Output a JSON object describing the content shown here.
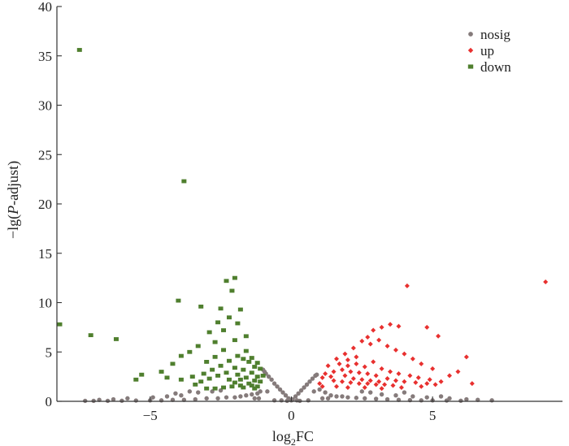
{
  "chart_data": {
    "type": "scatter",
    "title": "",
    "xlabel": "log₂FC",
    "xlabel_parts": {
      "base": "log",
      "sub": "2",
      "rest": "FC"
    },
    "ylabel": "−lg(P-adjust)",
    "ylabel_parts": {
      "pre": "−lg(",
      "italic": "P",
      "post": "-adjust)"
    },
    "xlim": [
      -8.3,
      9.6
    ],
    "ylim": [
      0,
      40
    ],
    "xticks": [
      -5,
      0,
      5
    ],
    "xtick_labels": [
      "−5",
      "0",
      "5"
    ],
    "yticks": [
      0,
      5,
      10,
      15,
      20,
      25,
      30,
      35,
      40
    ],
    "ytick_labels": [
      "0",
      "5",
      "10",
      "15",
      "20",
      "25",
      "30",
      "35",
      "40"
    ],
    "grid": false,
    "legend_position": "top-right",
    "series": [
      {
        "name": "nosig",
        "color": "#857b7b",
        "marker": "circle",
        "points": [
          [
            0.0,
            0.1
          ],
          [
            0.05,
            0.2
          ],
          [
            -0.1,
            0.3
          ],
          [
            0.15,
            0.5
          ],
          [
            -0.2,
            0.6
          ],
          [
            0.25,
            0.8
          ],
          [
            -0.3,
            0.9
          ],
          [
            0.35,
            1.1
          ],
          [
            -0.4,
            1.2
          ],
          [
            0.45,
            1.4
          ],
          [
            -0.5,
            1.5
          ],
          [
            0.55,
            1.7
          ],
          [
            -0.6,
            1.8
          ],
          [
            0.65,
            2.0
          ],
          [
            -0.7,
            2.2
          ],
          [
            0.75,
            2.3
          ],
          [
            -0.8,
            2.5
          ],
          [
            0.85,
            2.6
          ],
          [
            -0.9,
            2.8
          ],
          [
            0.9,
            2.7
          ],
          [
            -0.95,
            3.0
          ],
          [
            1.0,
            1.2
          ],
          [
            -1.0,
            3.2
          ],
          [
            -1.1,
            1.0
          ],
          [
            -1.2,
            0.8
          ],
          [
            1.2,
            0.9
          ],
          [
            -1.4,
            0.7
          ],
          [
            1.4,
            0.6
          ],
          [
            -1.6,
            0.6
          ],
          [
            1.6,
            0.5
          ],
          [
            -1.8,
            0.5
          ],
          [
            1.8,
            0.5
          ],
          [
            -2.0,
            0.4
          ],
          [
            2.0,
            0.4
          ],
          [
            -2.3,
            0.4
          ],
          [
            2.3,
            0.35
          ],
          [
            -2.6,
            0.3
          ],
          [
            2.6,
            0.3
          ],
          [
            -3.0,
            0.3
          ],
          [
            3.0,
            0.25
          ],
          [
            -3.4,
            0.2
          ],
          [
            3.4,
            0.2
          ],
          [
            -3.8,
            0.15
          ],
          [
            3.8,
            0.15
          ],
          [
            -4.2,
            0.15
          ],
          [
            4.2,
            0.12
          ],
          [
            -4.6,
            0.1
          ],
          [
            4.6,
            0.1
          ],
          [
            -5.0,
            0.1
          ],
          [
            5.0,
            0.1
          ],
          [
            -5.5,
            0.08
          ],
          [
            5.5,
            0.08
          ],
          [
            -6.0,
            0.06
          ],
          [
            6.0,
            0.06
          ],
          [
            -6.5,
            0.05
          ],
          [
            -7.0,
            0.05
          ],
          [
            -7.3,
            0.05
          ],
          [
            -4.9,
            0.4
          ],
          [
            -4.4,
            0.5
          ],
          [
            -3.9,
            0.6
          ],
          [
            -3.6,
            1.0
          ],
          [
            -3.3,
            0.9
          ],
          [
            3.2,
            0.7
          ],
          [
            3.7,
            0.6
          ],
          [
            4.3,
            0.5
          ],
          [
            4.8,
            0.4
          ],
          [
            5.6,
            0.3
          ],
          [
            6.2,
            0.2
          ],
          [
            6.6,
            0.15
          ],
          [
            7.1,
            0.1
          ],
          [
            -2.8,
            1.0
          ],
          [
            -2.5,
            1.1
          ],
          [
            2.5,
            1.0
          ],
          [
            2.8,
            0.9
          ],
          [
            -1.3,
            0.3
          ],
          [
            1.3,
            0.3
          ],
          [
            -0.6,
            0.1
          ],
          [
            0.6,
            0.1
          ],
          [
            -0.35,
            0.1
          ],
          [
            0.3,
            0.05
          ],
          [
            -5.8,
            0.3
          ],
          [
            -6.3,
            0.2
          ],
          [
            -6.8,
            0.15
          ],
          [
            5.3,
            0.5
          ],
          [
            4.0,
            0.9
          ],
          [
            -4.1,
            0.8
          ],
          [
            0.8,
            1.0
          ],
          [
            -0.85,
            1.0
          ],
          [
            1.1,
            0.3
          ],
          [
            -1.15,
            0.3
          ],
          [
            0.2,
            0.1
          ],
          [
            -0.15,
            0.05
          ]
        ]
      },
      {
        "name": "up",
        "color": "#e8302f",
        "marker": "diamond",
        "points": [
          [
            9.0,
            12.1
          ],
          [
            4.1,
            11.7
          ],
          [
            5.2,
            6.6
          ],
          [
            4.8,
            7.5
          ],
          [
            3.8,
            7.6
          ],
          [
            3.5,
            7.8
          ],
          [
            3.2,
            7.5
          ],
          [
            2.9,
            7.2
          ],
          [
            2.7,
            6.5
          ],
          [
            2.5,
            6.1
          ],
          [
            2.2,
            5.4
          ],
          [
            1.9,
            4.8
          ],
          [
            1.6,
            4.3
          ],
          [
            1.3,
            3.6
          ],
          [
            1.1,
            2.4
          ],
          [
            1.0,
            1.8
          ],
          [
            1.5,
            2.1
          ],
          [
            1.8,
            2.0
          ],
          [
            2.1,
            1.9
          ],
          [
            2.4,
            1.8
          ],
          [
            2.7,
            1.8
          ],
          [
            3.0,
            1.7
          ],
          [
            3.3,
            1.7
          ],
          [
            3.6,
            1.6
          ],
          [
            1.2,
            2.8
          ],
          [
            1.5,
            3.0
          ],
          [
            1.8,
            3.2
          ],
          [
            2.1,
            3.0
          ],
          [
            2.4,
            2.9
          ],
          [
            2.7,
            2.8
          ],
          [
            3.0,
            2.6
          ],
          [
            1.7,
            3.8
          ],
          [
            2.0,
            3.6
          ],
          [
            2.3,
            3.8
          ],
          [
            2.6,
            3.5
          ],
          [
            2.9,
            4.0
          ],
          [
            3.2,
            3.3
          ],
          [
            3.5,
            3.0
          ],
          [
            3.8,
            2.8
          ],
          [
            4.2,
            2.6
          ],
          [
            4.5,
            2.4
          ],
          [
            4.9,
            2.2
          ],
          [
            5.3,
            2.0
          ],
          [
            5.6,
            2.6
          ],
          [
            6.4,
            1.8
          ],
          [
            5.9,
            3.0
          ],
          [
            5.0,
            3.3
          ],
          [
            4.6,
            3.8
          ],
          [
            4.3,
            4.3
          ],
          [
            4.0,
            4.8
          ],
          [
            3.7,
            5.2
          ],
          [
            3.4,
            5.6
          ],
          [
            3.1,
            6.2
          ],
          [
            2.8,
            5.8
          ],
          [
            2.3,
            4.5
          ],
          [
            2.0,
            4.2
          ],
          [
            1.4,
            2.5
          ],
          [
            1.9,
            2.6
          ],
          [
            2.2,
            2.3
          ],
          [
            2.5,
            2.2
          ],
          [
            2.8,
            2.1
          ],
          [
            3.1,
            2.0
          ],
          [
            3.4,
            2.3
          ],
          [
            3.7,
            2.1
          ],
          [
            4.0,
            2.0
          ],
          [
            4.4,
            1.9
          ],
          [
            4.8,
            1.8
          ],
          [
            5.1,
            1.7
          ],
          [
            1.1,
            1.5
          ],
          [
            1.6,
            1.5
          ],
          [
            2.0,
            1.4
          ],
          [
            2.6,
            1.4
          ],
          [
            3.2,
            1.3
          ],
          [
            3.9,
            1.4
          ],
          [
            4.6,
            1.5
          ],
          [
            6.2,
            4.5
          ]
        ]
      },
      {
        "name": "down",
        "color": "#4f7f2e",
        "marker": "square",
        "points": [
          [
            -7.5,
            35.6
          ],
          [
            -3.8,
            22.3
          ],
          [
            -8.2,
            7.8
          ],
          [
            -7.1,
            6.7
          ],
          [
            -6.2,
            6.3
          ],
          [
            -4.0,
            10.2
          ],
          [
            -2.0,
            12.5
          ],
          [
            -2.3,
            12.2
          ],
          [
            -2.1,
            11.2
          ],
          [
            -2.5,
            9.4
          ],
          [
            -3.2,
            9.6
          ],
          [
            -1.8,
            9.3
          ],
          [
            -2.2,
            8.5
          ],
          [
            -2.6,
            8.0
          ],
          [
            -1.9,
            7.9
          ],
          [
            -2.4,
            7.2
          ],
          [
            -2.9,
            7.0
          ],
          [
            -1.6,
            6.6
          ],
          [
            -2.0,
            6.2
          ],
          [
            -2.7,
            6.0
          ],
          [
            -3.3,
            5.6
          ],
          [
            -3.6,
            5.0
          ],
          [
            -3.9,
            4.6
          ],
          [
            -4.2,
            3.8
          ],
          [
            -4.6,
            3.0
          ],
          [
            -5.3,
            2.7
          ],
          [
            -5.5,
            2.2
          ],
          [
            -4.4,
            2.4
          ],
          [
            -3.9,
            2.2
          ],
          [
            -3.5,
            2.5
          ],
          [
            -3.1,
            2.8
          ],
          [
            -2.8,
            3.2
          ],
          [
            -2.5,
            3.6
          ],
          [
            -2.2,
            4.1
          ],
          [
            -1.9,
            4.6
          ],
          [
            -1.6,
            5.1
          ],
          [
            -1.4,
            4.4
          ],
          [
            -1.2,
            3.9
          ],
          [
            -1.1,
            3.3
          ],
          [
            -1.0,
            2.6
          ],
          [
            -1.3,
            2.1
          ],
          [
            -1.5,
            1.8
          ],
          [
            -1.8,
            1.6
          ],
          [
            -2.1,
            1.5
          ],
          [
            -2.4,
            1.4
          ],
          [
            -2.7,
            1.3
          ],
          [
            -3.0,
            1.3
          ],
          [
            -1.2,
            1.5
          ],
          [
            -1.4,
            2.9
          ],
          [
            -1.7,
            3.2
          ],
          [
            -2.0,
            3.4
          ],
          [
            -2.3,
            2.9
          ],
          [
            -2.6,
            2.6
          ],
          [
            -2.9,
            2.3
          ],
          [
            -3.2,
            2.0
          ],
          [
            -3.4,
            1.7
          ],
          [
            -1.1,
            2.0
          ],
          [
            -1.3,
            3.5
          ],
          [
            -1.5,
            4.0
          ],
          [
            -1.7,
            4.3
          ],
          [
            -2.4,
            5.2
          ],
          [
            -2.7,
            4.5
          ],
          [
            -3.0,
            4.0
          ],
          [
            -1.2,
            2.5
          ],
          [
            -1.6,
            2.4
          ],
          [
            -1.9,
            2.7
          ],
          [
            -2.2,
            2.2
          ],
          [
            -1.4,
            1.6
          ],
          [
            -1.8,
            2.2
          ],
          [
            -2.0,
            1.9
          ],
          [
            -1.3,
            1.3
          ],
          [
            -1.7,
            1.4
          ]
        ]
      }
    ]
  }
}
